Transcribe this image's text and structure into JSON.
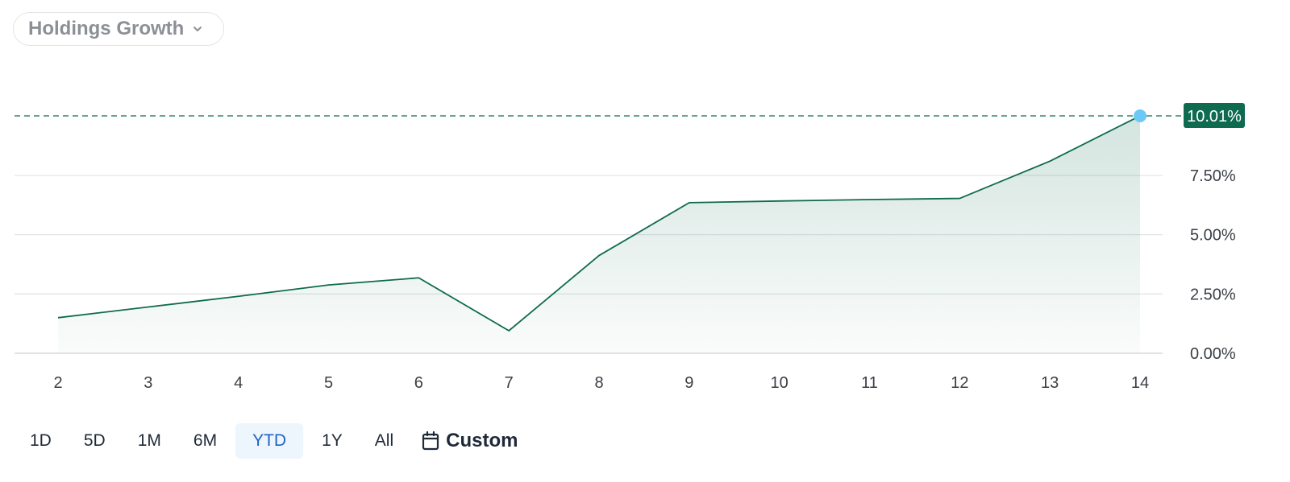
{
  "metric_selector": {
    "label": "Holdings Growth",
    "icon": "chevron-down-icon"
  },
  "colors": {
    "line": "#0e6b4f",
    "fill": "#0e6b4f",
    "marker": "#6cc9f7",
    "label_bg": "#0e6b4f",
    "grid": "#e3e5e8",
    "active_range": "#1f63c8"
  },
  "current_value_label": "10.01%",
  "range_buttons": [
    {
      "label": "1D",
      "active": false
    },
    {
      "label": "5D",
      "active": false
    },
    {
      "label": "1M",
      "active": false
    },
    {
      "label": "6M",
      "active": false
    },
    {
      "label": "YTD",
      "active": true
    },
    {
      "label": "1Y",
      "active": false
    },
    {
      "label": "All",
      "active": false
    }
  ],
  "custom_button": {
    "label": "Custom",
    "icon": "calendar-icon"
  },
  "chart_data": {
    "type": "area",
    "x": [
      2,
      3,
      4,
      5,
      6,
      7,
      8,
      9,
      10,
      11,
      12,
      13,
      14
    ],
    "x_tick_labels": [
      "2",
      "3",
      "4",
      "5",
      "6",
      "7",
      "8",
      "9",
      "10",
      "11",
      "12",
      "13",
      "14"
    ],
    "series": [
      {
        "values": [
          1.5,
          1.95,
          2.4,
          2.88,
          3.18,
          0.95,
          4.12,
          6.35,
          6.42,
          6.48,
          6.53,
          8.1,
          10.01
        ]
      }
    ],
    "y_ticks": [
      0,
      2.5,
      5,
      7.5
    ],
    "y_tick_labels": [
      "0.00%",
      "2.50%",
      "5.00%",
      "7.50%"
    ],
    "ylim": [
      0,
      10.01
    ],
    "y_axis_side": "right",
    "grid": true,
    "reference_line": {
      "value": 10.01,
      "style": "dashed"
    }
  }
}
